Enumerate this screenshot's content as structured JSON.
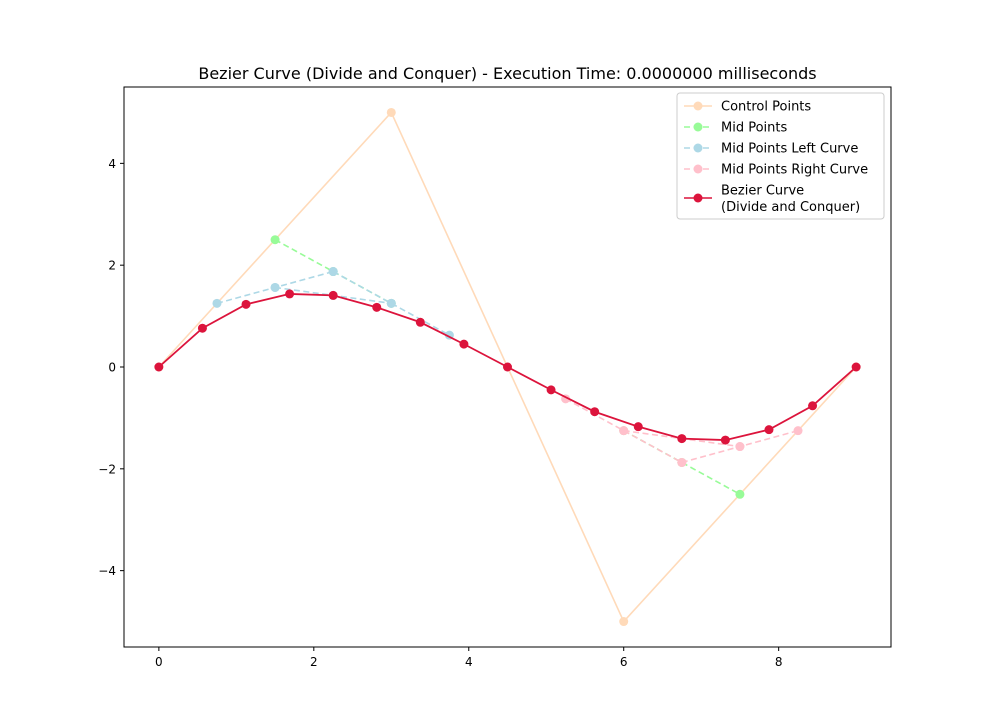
{
  "chart_data": {
    "type": "line",
    "title": "Bezier Curve (Divide and Conquer) - Execution Time: 0.0000000 milliseconds",
    "xlabel": "",
    "ylabel": "",
    "xlim": [
      -0.45,
      9.45
    ],
    "ylim": [
      -5.5,
      5.5
    ],
    "xticks": [
      0,
      2,
      4,
      6,
      8
    ],
    "xtick_labels": [
      "0",
      "2",
      "4",
      "6",
      "8"
    ],
    "yticks": [
      -4,
      -2,
      0,
      2,
      4
    ],
    "ytick_labels": [
      "−4",
      "−2",
      "0",
      "2",
      "4"
    ],
    "grid": false,
    "legend_position": "top-right",
    "series": [
      {
        "name": "Control Points",
        "color": "#ffdab9",
        "line_style": "solid",
        "x": [
          0,
          3,
          6,
          9
        ],
        "y": [
          0,
          5,
          -5,
          0
        ]
      },
      {
        "name": "Mid Points",
        "color": "#98fb98",
        "line_style": "dashed",
        "x": [
          1.5,
          3.0
        ],
        "y": [
          2.5,
          1.25
        ],
        "segments": [
          {
            "x": [
              1.5,
              2.25,
              3.0
            ],
            "y": [
              2.5,
              1.875,
              1.25
            ]
          },
          {
            "x": [
              6.0,
              6.75,
              7.5
            ],
            "y": [
              -1.25,
              -1.875,
              -2.5
            ]
          }
        ]
      },
      {
        "name": "Mid Points Left Curve",
        "color": "#add8e6",
        "line_style": "dashed",
        "segments": [
          {
            "x": [
              0.75,
              1.5,
              2.25
            ],
            "y": [
              1.25,
              1.5625,
              1.875
            ]
          },
          {
            "x": [
              2.25,
              3.0,
              3.75
            ],
            "y": [
              1.875,
              1.25,
              0.625
            ]
          },
          {
            "x": [
              1.5,
              2.25,
              3.0
            ],
            "y": [
              1.5625,
              1.40625,
              1.25
            ]
          }
        ]
      },
      {
        "name": "Mid Points Right Curve",
        "color": "#ffc0cb",
        "line_style": "dashed",
        "segments": [
          {
            "x": [
              5.25,
              6.0,
              6.75
            ],
            "y": [
              -0.625,
              -1.25,
              -1.875
            ]
          },
          {
            "x": [
              6.75,
              7.5,
              8.25
            ],
            "y": [
              -1.875,
              -1.5625,
              -1.25
            ]
          },
          {
            "x": [
              6.0,
              6.75,
              7.5
            ],
            "y": [
              -1.25,
              -1.40625,
              -1.5625
            ]
          }
        ]
      },
      {
        "name": "Bezier Curve\n(Divide and Conquer)",
        "color": "#dc143c",
        "line_style": "solid",
        "x": [
          0,
          0.5625,
          1.125,
          1.6875,
          2.25,
          2.8125,
          3.375,
          3.9375,
          4.5,
          5.0625,
          5.625,
          6.1875,
          6.75,
          7.3125,
          7.875,
          8.4375,
          9
        ],
        "y": [
          0,
          0.7617,
          1.2305,
          1.4355,
          1.4063,
          1.1719,
          0.8789,
          0.4492,
          0,
          -0.4492,
          -0.8789,
          -1.1719,
          -1.4063,
          -1.4355,
          -1.2305,
          -0.7617,
          0
        ]
      }
    ]
  }
}
